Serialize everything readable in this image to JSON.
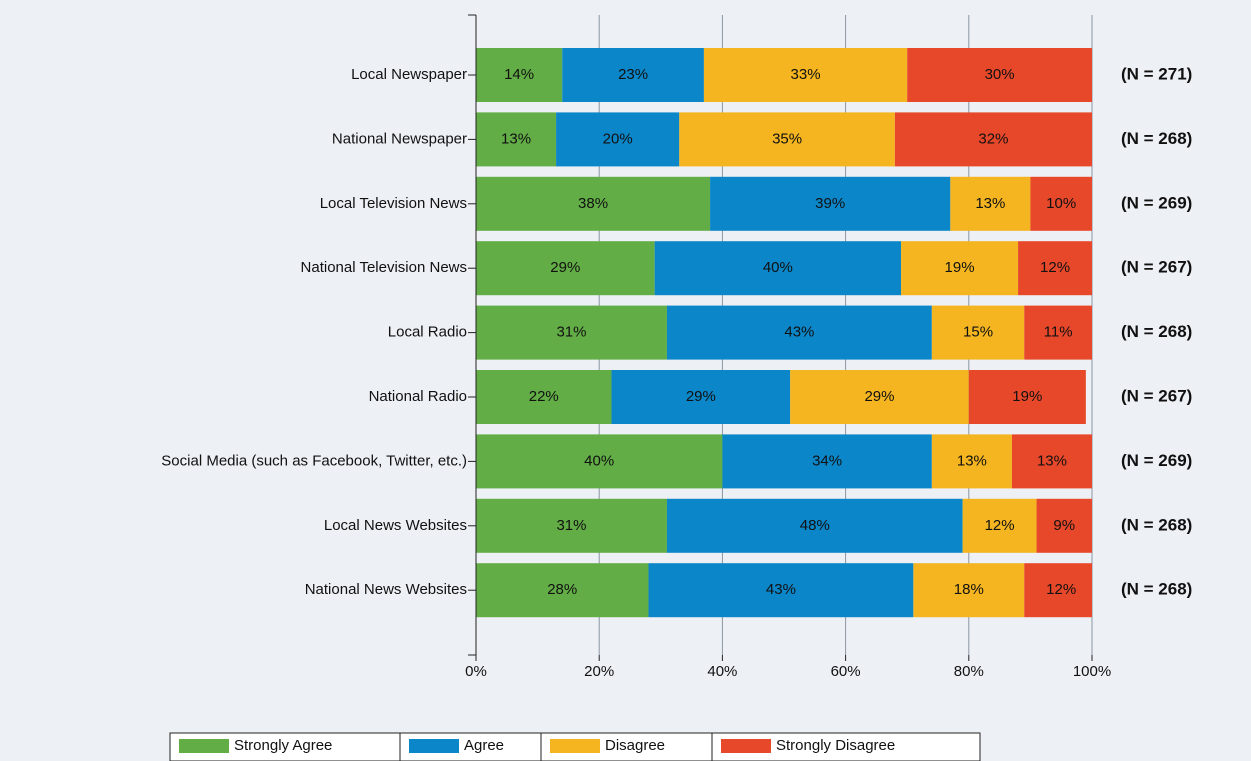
{
  "chart_data": {
    "type": "stacked_barh",
    "categories": [
      "Local Newspaper",
      "National Newspaper",
      "Local Television News",
      "National Television News",
      "Local Radio",
      "National Radio",
      "Social Media (such as Facebook, Twitter, etc.)",
      "Local News Websites",
      "National News Websites"
    ],
    "series": [
      {
        "name": "Strongly Agree",
        "color": "#62ad46",
        "values": [
          14,
          13,
          38,
          29,
          31,
          22,
          40,
          31,
          28
        ],
        "value_labels": [
          "14%",
          "13%",
          "38%",
          "29%",
          "31%",
          "22%",
          "40%",
          "31%",
          "28%"
        ]
      },
      {
        "name": "Agree",
        "color": "#0b86c9",
        "values": [
          23,
          20,
          39,
          40,
          43,
          29,
          34,
          48,
          43
        ],
        "value_labels": [
          "23%",
          "20%",
          "39%",
          "40%",
          "43%",
          "29%",
          "34%",
          "48%",
          "43%"
        ]
      },
      {
        "name": "Disagree",
        "color": "#f4b521",
        "values": [
          33,
          35,
          13,
          19,
          15,
          29,
          13,
          12,
          18
        ],
        "value_labels": [
          "33%",
          "35%",
          "13%",
          "19%",
          "15%",
          "29%",
          "13%",
          "12%",
          "18%"
        ]
      },
      {
        "name": "Strongly Disagree",
        "color": "#e8482a",
        "values": [
          30,
          32,
          10,
          12,
          11,
          19,
          13,
          9,
          12
        ],
        "value_labels": [
          "30%",
          "32%",
          "10%",
          "12%",
          "11%",
          "19%",
          "13%",
          "9%",
          "12%"
        ]
      }
    ],
    "annotations": [
      "(N = 271)",
      "(N = 268)",
      "(N = 269)",
      "(N = 267)",
      "(N = 268)",
      "(N = 267)",
      "(N = 269)",
      "(N = 268)",
      "(N = 268)"
    ],
    "xlim": [
      0,
      100
    ],
    "xticks": [
      {
        "value": 0,
        "label": "0%"
      },
      {
        "value": 20,
        "label": "20%"
      },
      {
        "value": 40,
        "label": "40%"
      },
      {
        "value": 60,
        "label": "60%"
      },
      {
        "value": 80,
        "label": "80%"
      },
      {
        "value": 100,
        "label": "100%"
      }
    ],
    "grid": true
  }
}
